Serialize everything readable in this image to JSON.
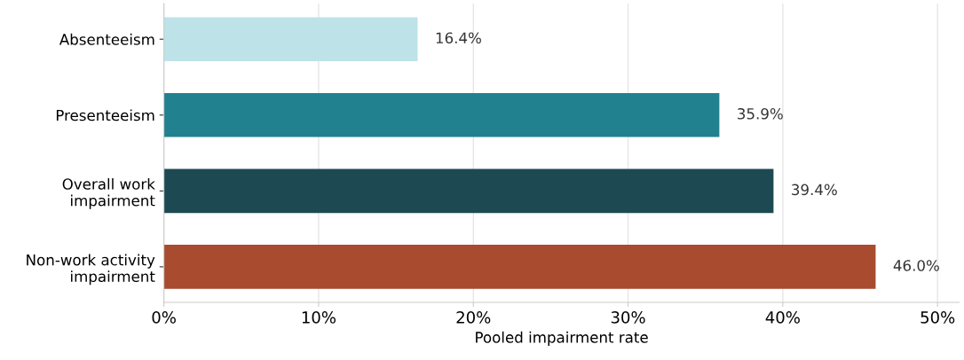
{
  "chart_data": {
    "type": "bar",
    "orientation": "horizontal",
    "categories": [
      "Absenteeism",
      "Presenteeism",
      "Overall work\nimpairment",
      "Non-work activity\nimpairment"
    ],
    "values": [
      16.4,
      35.9,
      39.4,
      46.0
    ],
    "colors": [
      "#bde3e8",
      "#21818e",
      "#1d4a52",
      "#a84b2f"
    ],
    "value_labels": [
      "16.4%",
      "35.9%",
      "39.4%",
      "46.0%"
    ],
    "xlabel": "Pooled impairment rate",
    "xlim": [
      0,
      51.4
    ],
    "xticks": [
      {
        "value": 0,
        "label": "0%"
      },
      {
        "value": 10,
        "label": "10%"
      },
      {
        "value": 20,
        "label": "20%"
      },
      {
        "value": 30,
        "label": "30%"
      },
      {
        "value": 40,
        "label": "40%"
      },
      {
        "value": 50,
        "label": "50%"
      }
    ],
    "grid": "x",
    "legend": false
  }
}
